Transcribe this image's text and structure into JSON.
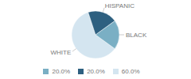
{
  "chart_data": {
    "type": "pie",
    "categories": [
      "WHITE",
      "BLACK",
      "HISPANIC"
    ],
    "values": [
      60.0,
      20.0,
      20.0
    ],
    "value_labels": [
      "60.0%",
      "20.0%",
      "20.0%"
    ],
    "colors": [
      "#d4e5f0",
      "#7aafc4",
      "#2e6080"
    ],
    "legend": "bottom"
  }
}
